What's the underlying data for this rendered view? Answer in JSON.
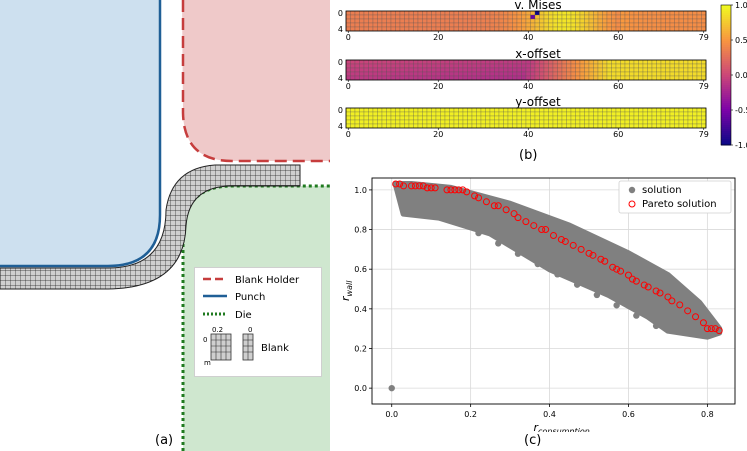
{
  "captions": {
    "a": "(a)",
    "b": "(b)",
    "c": "(c)"
  },
  "legend_a": {
    "items": [
      {
        "label": "Blank Holder",
        "color": "#c63d3d",
        "style": "dashed"
      },
      {
        "label": "Punch",
        "color": "#1f5f96",
        "style": "solid"
      },
      {
        "label": "Die",
        "color": "#1f7a1f",
        "style": "dotted"
      },
      {
        "label": "Blank",
        "color": "#333333",
        "style": "mesh"
      }
    ],
    "mesh_marks": {
      "zero_top": "0",
      "two": "0.2",
      "zero_right": "0",
      "zero_left": "0",
      "m": "m"
    }
  },
  "chart_data": [
    {
      "type": "heatmap",
      "title": "v. Mises",
      "rows": 5,
      "cols": 80,
      "x_ticks": [
        "0",
        "20",
        "40",
        "60",
        "79"
      ],
      "y_ticks": [
        "0",
        "4"
      ],
      "pattern": "mises"
    },
    {
      "type": "heatmap",
      "title": "x-offset",
      "rows": 5,
      "cols": 80,
      "x_ticks": [
        "0",
        "20",
        "40",
        "60",
        "79"
      ],
      "y_ticks": [
        "0",
        "4"
      ],
      "pattern": "xoffset"
    },
    {
      "type": "heatmap",
      "title": "y-offset",
      "rows": 5,
      "cols": 80,
      "x_ticks": [
        "0",
        "20",
        "40",
        "60",
        "79"
      ],
      "y_ticks": [
        "0",
        "4"
      ],
      "pattern": "yoffset"
    },
    {
      "type": "colorbar",
      "range": [
        -1.0,
        1.0
      ],
      "ticks": [
        "1.0",
        "0.5",
        "0.0",
        "-0.5",
        "-1.0"
      ],
      "colormap": "plasma"
    },
    {
      "type": "scatter",
      "xlabel_main": "r",
      "xlabel_sub": "consumption",
      "ylabel_main": "r",
      "ylabel_sub": "wall",
      "xlim": [
        -0.05,
        0.87
      ],
      "ylim": [
        -0.08,
        1.06
      ],
      "x_ticks": [
        0.0,
        0.2,
        0.4,
        0.6,
        0.8
      ],
      "y_ticks": [
        0.0,
        0.2,
        0.4,
        0.6,
        0.8,
        1.0
      ],
      "x_tick_labels": [
        "0.0",
        "0.2",
        "0.4",
        "0.6",
        "0.8"
      ],
      "y_tick_labels": [
        "0.0",
        "0.2",
        "0.4",
        "0.6",
        "0.8",
        "1.0"
      ],
      "grid": true,
      "legend_position": "top-right",
      "series": [
        {
          "name": "solution",
          "color": "#808080",
          "marker": "filled-circle",
          "band": {
            "upper": [
              [
                0.01,
                1.03
              ],
              [
                0.05,
                1.03
              ],
              [
                0.15,
                1.01
              ],
              [
                0.3,
                0.93
              ],
              [
                0.45,
                0.82
              ],
              [
                0.6,
                0.68
              ],
              [
                0.7,
                0.57
              ],
              [
                0.78,
                0.43
              ],
              [
                0.83,
                0.3
              ]
            ],
            "lower": [
              [
                0.03,
                0.88
              ],
              [
                0.12,
                0.86
              ],
              [
                0.25,
                0.78
              ],
              [
                0.4,
                0.6
              ],
              [
                0.55,
                0.47
              ],
              [
                0.65,
                0.36
              ],
              [
                0.7,
                0.29
              ],
              [
                0.8,
                0.26
              ],
              [
                0.83,
                0.28
              ]
            ]
          },
          "points": [
            [
              0.0,
              0.0
            ]
          ]
        },
        {
          "name": "Pareto solution",
          "color": "#ff0000",
          "marker": "hollow-circle",
          "points": [
            [
              0.01,
              1.03
            ],
            [
              0.02,
              1.03
            ],
            [
              0.03,
              1.02
            ],
            [
              0.05,
              1.02
            ],
            [
              0.06,
              1.02
            ],
            [
              0.07,
              1.02
            ],
            [
              0.08,
              1.02
            ],
            [
              0.09,
              1.01
            ],
            [
              0.1,
              1.01
            ],
            [
              0.11,
              1.01
            ],
            [
              0.14,
              1.0
            ],
            [
              0.15,
              1.0
            ],
            [
              0.16,
              1.0
            ],
            [
              0.17,
              1.0
            ],
            [
              0.18,
              1.0
            ],
            [
              0.19,
              0.99
            ],
            [
              0.21,
              0.97
            ],
            [
              0.22,
              0.96
            ],
            [
              0.24,
              0.94
            ],
            [
              0.26,
              0.92
            ],
            [
              0.27,
              0.92
            ],
            [
              0.29,
              0.9
            ],
            [
              0.31,
              0.88
            ],
            [
              0.32,
              0.86
            ],
            [
              0.34,
              0.84
            ],
            [
              0.36,
              0.82
            ],
            [
              0.38,
              0.8
            ],
            [
              0.39,
              0.8
            ],
            [
              0.41,
              0.77
            ],
            [
              0.43,
              0.75
            ],
            [
              0.44,
              0.74
            ],
            [
              0.46,
              0.72
            ],
            [
              0.48,
              0.7
            ],
            [
              0.5,
              0.68
            ],
            [
              0.51,
              0.67
            ],
            [
              0.53,
              0.65
            ],
            [
              0.54,
              0.64
            ],
            [
              0.56,
              0.61
            ],
            [
              0.57,
              0.6
            ],
            [
              0.58,
              0.59
            ],
            [
              0.6,
              0.57
            ],
            [
              0.61,
              0.55
            ],
            [
              0.62,
              0.54
            ],
            [
              0.64,
              0.52
            ],
            [
              0.65,
              0.51
            ],
            [
              0.67,
              0.49
            ],
            [
              0.68,
              0.48
            ],
            [
              0.7,
              0.46
            ],
            [
              0.71,
              0.44
            ],
            [
              0.73,
              0.42
            ],
            [
              0.75,
              0.39
            ],
            [
              0.77,
              0.36
            ],
            [
              0.79,
              0.33
            ],
            [
              0.8,
              0.3
            ],
            [
              0.81,
              0.3
            ],
            [
              0.82,
              0.3
            ],
            [
              0.83,
              0.29
            ]
          ]
        }
      ]
    }
  ]
}
